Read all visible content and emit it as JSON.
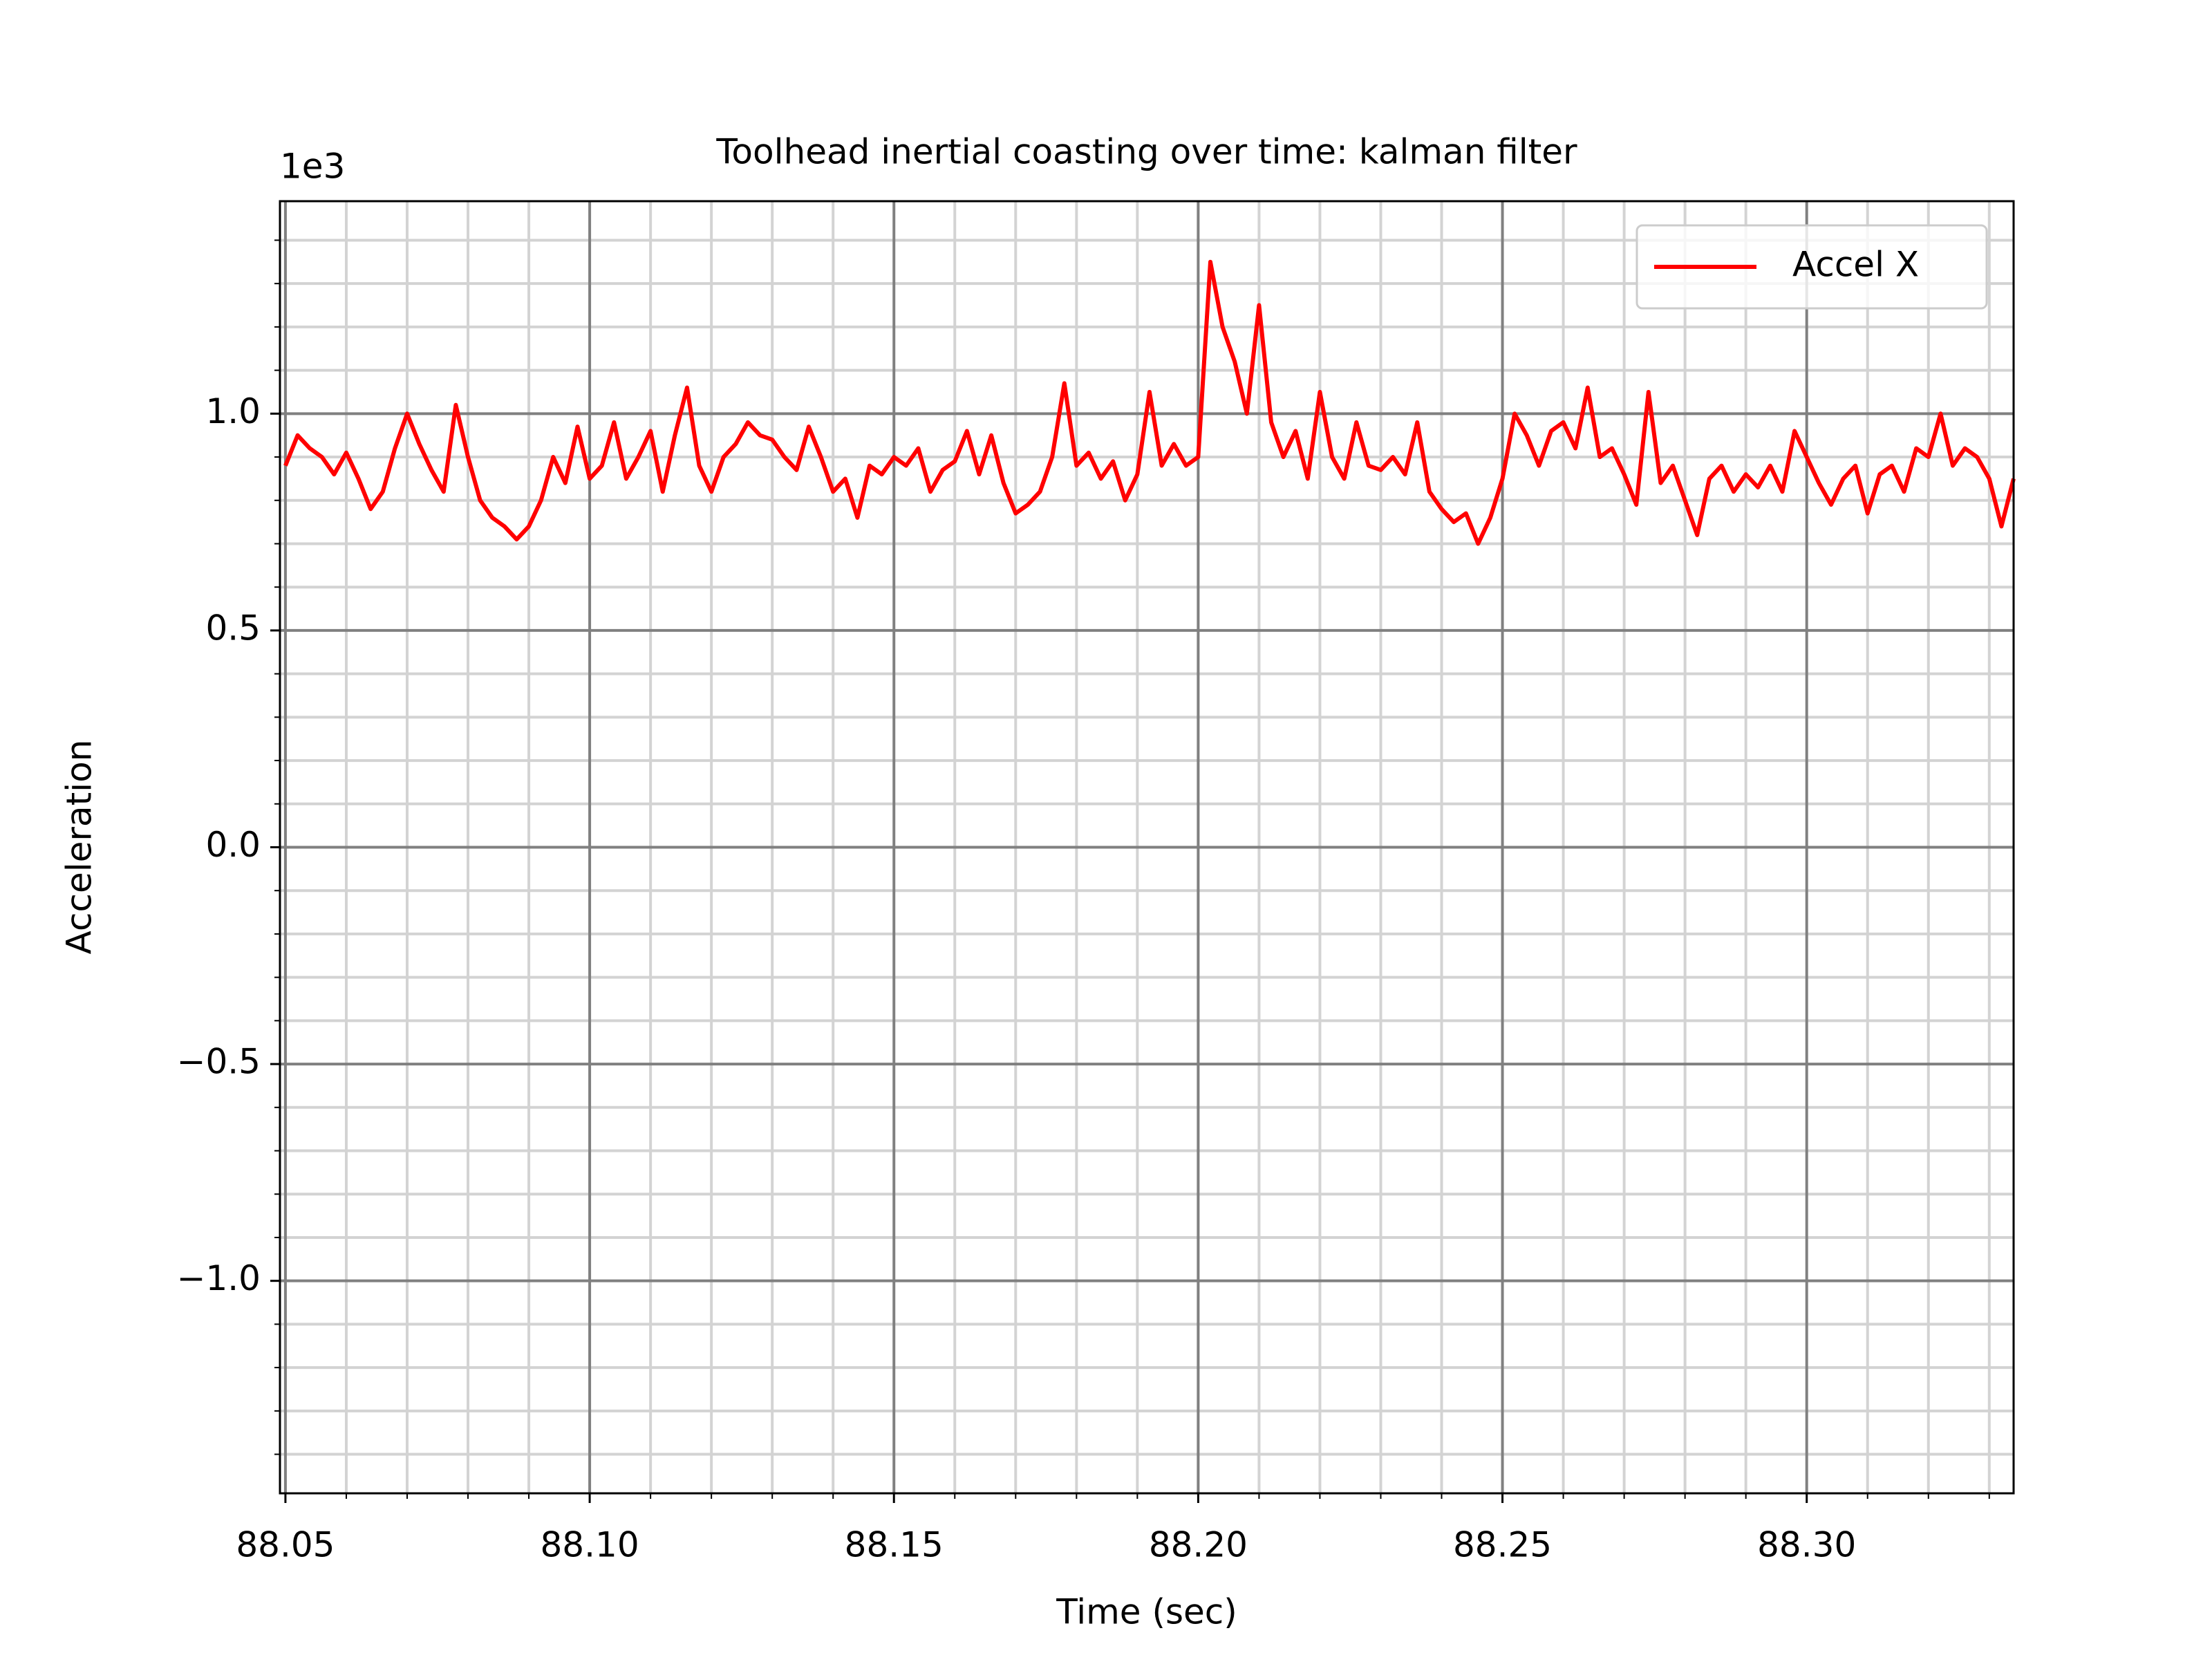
{
  "chart_data": {
    "type": "line",
    "title": "Toolhead inertial coasting over time: kalman filter",
    "xlabel": "Time (sec)",
    "ylabel": "Acceleration",
    "y_offset_text": "1e3",
    "x": [
      88.05,
      88.052,
      88.054,
      88.056,
      88.058,
      88.06,
      88.062,
      88.064,
      88.066,
      88.068,
      88.07,
      88.072,
      88.074,
      88.076,
      88.078,
      88.08,
      88.082,
      88.084,
      88.086,
      88.088,
      88.09,
      88.092,
      88.094,
      88.096,
      88.098,
      88.1,
      88.102,
      88.104,
      88.106,
      88.108,
      88.11,
      88.112,
      88.114,
      88.116,
      88.118,
      88.12,
      88.122,
      88.124,
      88.126,
      88.128,
      88.13,
      88.132,
      88.134,
      88.136,
      88.138,
      88.14,
      88.142,
      88.144,
      88.146,
      88.148,
      88.15,
      88.152,
      88.154,
      88.156,
      88.158,
      88.16,
      88.162,
      88.164,
      88.166,
      88.168,
      88.17,
      88.172,
      88.174,
      88.176,
      88.178,
      88.18,
      88.182,
      88.184,
      88.186,
      88.188,
      88.19,
      88.192,
      88.194,
      88.196,
      88.198,
      88.2,
      88.202,
      88.204,
      88.206,
      88.208,
      88.21,
      88.212,
      88.214,
      88.216,
      88.218,
      88.22,
      88.222,
      88.224,
      88.226,
      88.228,
      88.23,
      88.232,
      88.234,
      88.236,
      88.238,
      88.24,
      88.242,
      88.244,
      88.246,
      88.248,
      88.25,
      88.252,
      88.254,
      88.256,
      88.258,
      88.26,
      88.262,
      88.264,
      88.266,
      88.268,
      88.27,
      88.272,
      88.274,
      88.276,
      88.278,
      88.28,
      88.282,
      88.284,
      88.286,
      88.288,
      88.29,
      88.292,
      88.294,
      88.296,
      88.298,
      88.3,
      88.302,
      88.304,
      88.306,
      88.308,
      88.31,
      88.312,
      88.314,
      88.316,
      88.318,
      88.32,
      88.322,
      88.324,
      88.326,
      88.328,
      88.33,
      88.332,
      88.334
    ],
    "series": [
      {
        "name": "Accel X",
        "color": "#ff0000",
        "values": [
          0.88,
          0.95,
          0.92,
          0.9,
          0.86,
          0.91,
          0.85,
          0.78,
          0.82,
          0.92,
          1.0,
          0.93,
          0.87,
          0.82,
          1.02,
          0.9,
          0.8,
          0.76,
          0.74,
          0.71,
          0.74,
          0.8,
          0.9,
          0.84,
          0.97,
          0.85,
          0.88,
          0.98,
          0.85,
          0.9,
          0.96,
          0.82,
          0.95,
          1.06,
          0.88,
          0.82,
          0.9,
          0.93,
          0.98,
          0.95,
          0.94,
          0.9,
          0.87,
          0.97,
          0.9,
          0.82,
          0.85,
          0.76,
          0.88,
          0.86,
          0.9,
          0.88,
          0.92,
          0.82,
          0.87,
          0.89,
          0.96,
          0.86,
          0.95,
          0.84,
          0.77,
          0.79,
          0.82,
          0.9,
          1.07,
          0.88,
          0.91,
          0.85,
          0.89,
          0.8,
          0.86,
          1.05,
          0.88,
          0.93,
          0.88,
          0.9,
          1.35,
          1.2,
          1.12,
          1.0,
          1.25,
          0.98,
          0.9,
          0.96,
          0.85,
          1.05,
          0.9,
          0.85,
          0.98,
          0.88,
          0.87,
          0.9,
          0.86,
          0.98,
          0.82,
          0.78,
          0.75,
          0.77,
          0.7,
          0.76,
          0.85,
          1.0,
          0.95,
          0.88,
          0.96,
          0.98,
          0.92,
          1.06,
          0.9,
          0.92,
          0.86,
          0.79,
          1.05,
          0.84,
          0.88,
          0.8,
          0.72,
          0.85,
          0.88,
          0.82,
          0.86,
          0.83,
          0.88,
          0.82,
          0.96,
          0.9,
          0.84,
          0.79,
          0.85,
          0.88,
          0.77,
          0.86,
          0.88,
          0.82,
          0.92,
          0.9,
          1.0,
          0.88,
          0.92,
          0.9,
          0.85,
          0.74,
          0.85
        ]
      }
    ],
    "xlim": [
      88.0491,
      88.334
    ],
    "ylim": [
      -1.49,
      1.49
    ],
    "xticks": [
      88.05,
      {
        "value": 88.1,
        "label": "88.10"
      },
      88.15,
      {
        "value": 88.2,
        "label": "88.20"
      },
      88.25,
      {
        "value": 88.3,
        "label": "88.30"
      }
    ],
    "yticks": [
      {
        "value": -1,
        "label": "−1.0"
      },
      {
        "value": -0.5,
        "label": "−0.5"
      },
      {
        "value": 0,
        "label": "0.0"
      },
      0.5,
      {
        "value": 1,
        "label": "1.0"
      }
    ],
    "xminorticks": [
      88.06,
      88.07,
      88.08,
      88.09,
      88.11,
      88.12,
      88.13,
      88.14,
      88.16,
      88.17,
      88.18,
      88.19,
      88.21,
      88.22,
      88.23,
      88.24,
      88.26,
      88.27,
      88.28,
      88.29,
      88.31,
      88.32,
      88.33
    ],
    "yminorticks": [
      -1.4,
      -1.3,
      -1.2,
      -1.1,
      -0.9,
      -0.8,
      -0.7,
      -0.6,
      -0.4,
      -0.3,
      -0.2,
      -0.1,
      0.1,
      0.2,
      0.3,
      0.4,
      0.6,
      0.7,
      0.8,
      0.9,
      1.1,
      1.2,
      1.3,
      1.4
    ],
    "grid": true,
    "minor_grid": true,
    "legend_position": "upper right"
  }
}
